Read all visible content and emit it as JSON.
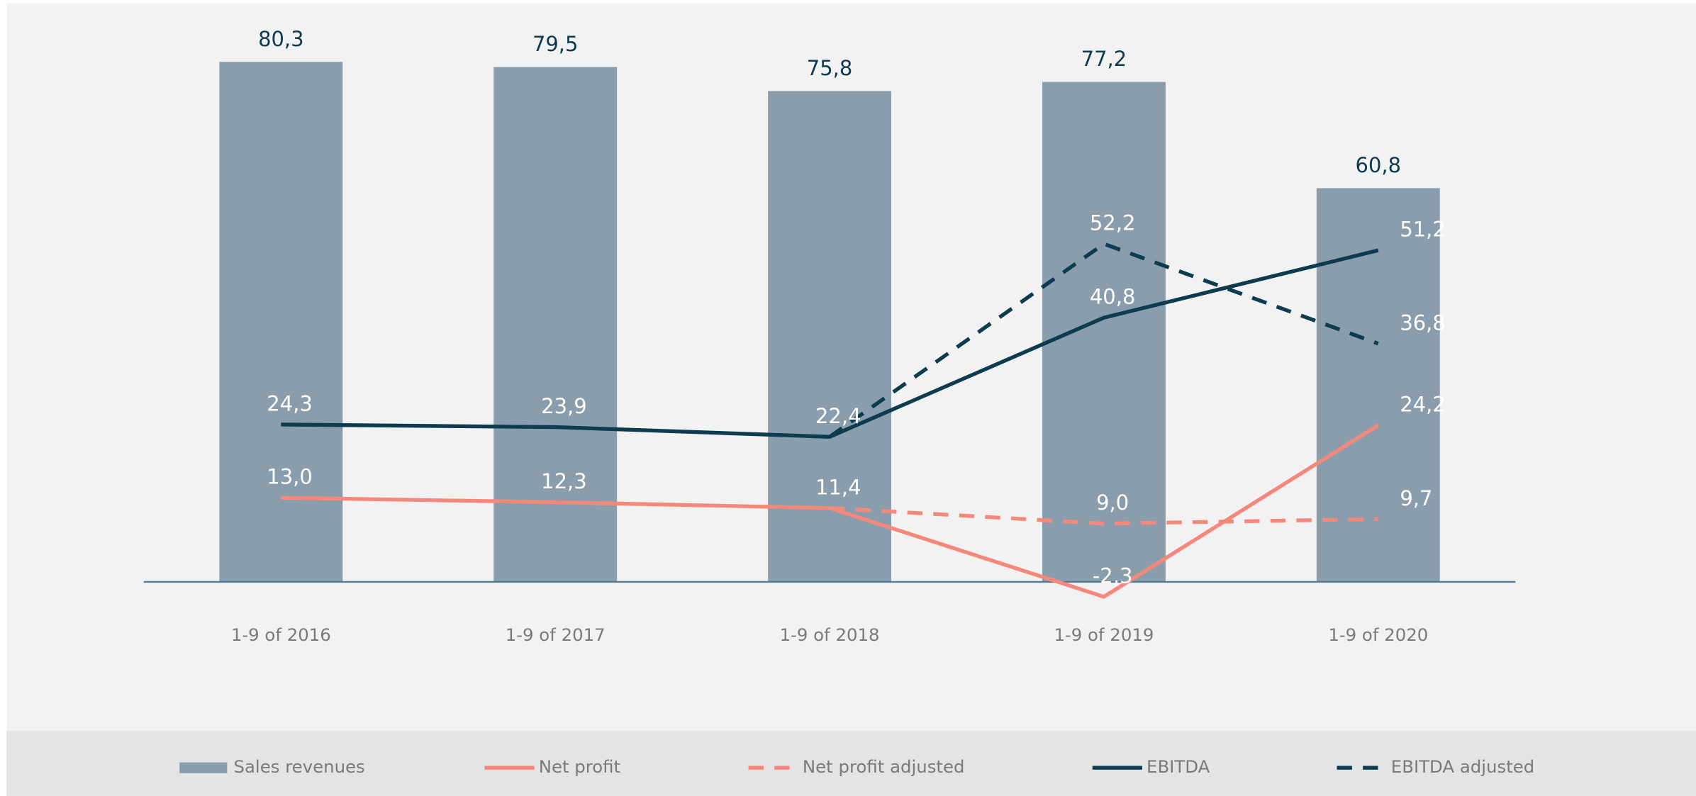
{
  "chart_data": {
    "type": "bar",
    "categories": [
      "1-9 of 2016",
      "1-9 of 2017",
      "1-9 of 2018",
      "1-9 of 2019",
      "1-9 of 2020"
    ],
    "ylim": [
      -5,
      85
    ],
    "series": [
      {
        "name": "Sales revenues",
        "type": "bar",
        "color": "#8a9dad",
        "label_color": "#0d3b4f",
        "values": [
          80.3,
          79.5,
          75.8,
          77.2,
          60.8
        ],
        "value_labels": [
          "80,3",
          "79,5",
          "75,8",
          "77,2",
          "60,8"
        ]
      },
      {
        "name": "Net profit",
        "type": "line",
        "dashed": false,
        "color": "#f4897b",
        "label_color": "#ffffff",
        "values": [
          13.0,
          12.3,
          11.4,
          -2.3,
          24.2
        ],
        "value_labels": [
          "13,0",
          "12,3",
          "11,4",
          "-2,3",
          "24,2"
        ]
      },
      {
        "name": "Net profit adjusted",
        "type": "line",
        "dashed": true,
        "color": "#f4897b",
        "label_color": "#ffffff",
        "values": [
          null,
          null,
          11.4,
          9.0,
          9.7
        ],
        "value_labels": [
          null,
          null,
          null,
          "9,0",
          "9,7"
        ]
      },
      {
        "name": "EBITDA",
        "type": "line",
        "dashed": false,
        "color": "#0d3b4f",
        "label_color": "#ffffff",
        "values": [
          24.3,
          23.9,
          22.4,
          40.8,
          51.2
        ],
        "value_labels": [
          "24,3",
          "23,9",
          "22,4",
          "40,8",
          "51,2"
        ]
      },
      {
        "name": "EBITDA adjusted",
        "type": "line",
        "dashed": true,
        "color": "#0d3b4f",
        "label_color": "#ffffff",
        "values": [
          null,
          null,
          22.4,
          52.2,
          36.8
        ],
        "value_labels": [
          null,
          null,
          null,
          "52,2",
          "36,8"
        ]
      }
    ]
  }
}
